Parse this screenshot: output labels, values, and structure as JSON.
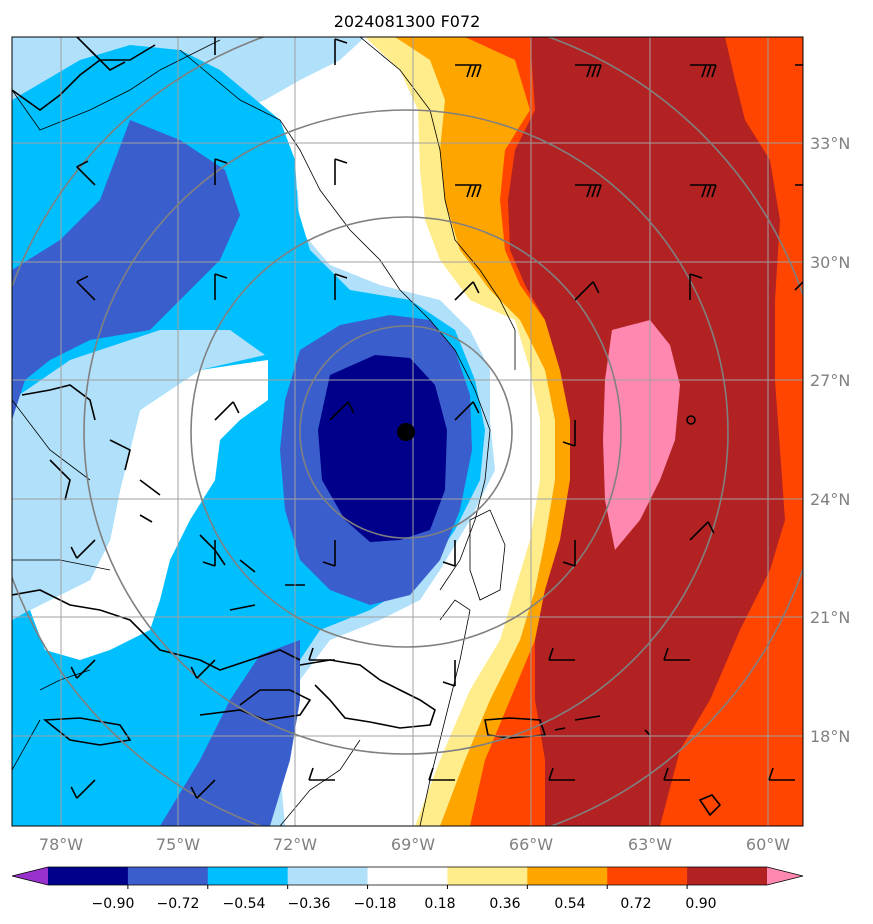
{
  "title": "2024081300 F072",
  "lon_labels": [
    "78°W",
    "75°W",
    "72°W",
    "69°W",
    "66°W",
    "63°W",
    "60°W"
  ],
  "lat_labels": [
    "33°N",
    "30°N",
    "27°N",
    "24°N",
    "21°N",
    "18°N"
  ],
  "colorbar": {
    "ticks": [
      "−0.90",
      "−0.72",
      "−0.54",
      "−0.36",
      "−0.18",
      "0.18",
      "0.36",
      "0.54",
      "0.72",
      "0.90"
    ],
    "colors": [
      "#9932CC",
      "#00008B",
      "#3A5FCD",
      "#00BFFF",
      "#B0E0FA",
      "#FFFFFF",
      "#FFEC8B",
      "#FFA500",
      "#FF4500",
      "#B22222",
      "#FF88B0"
    ]
  },
  "storm_marker": {
    "lon": -69.0,
    "lat": 25.8
  }
}
